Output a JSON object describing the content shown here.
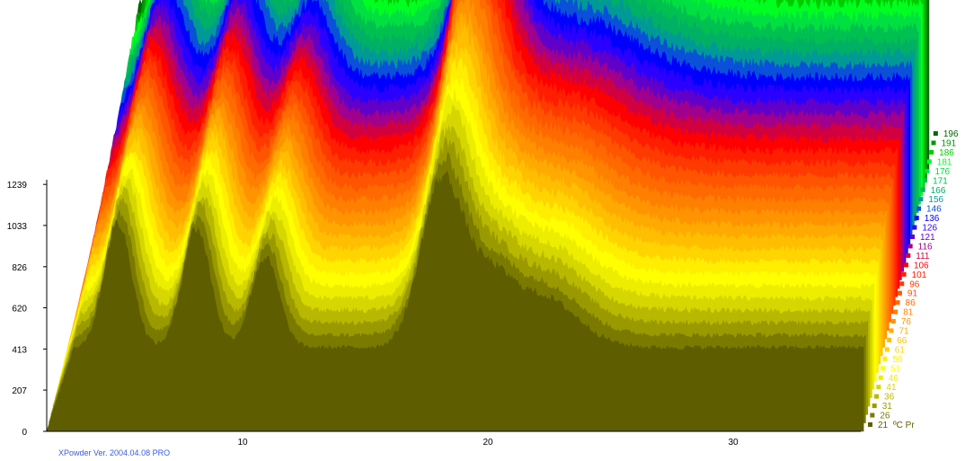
{
  "footer_text": "XPowder Ver. 2004.04.08 PRO",
  "legend_unit": "ºC",
  "legend_suffix": "Pr",
  "chart_data": {
    "type": "area",
    "style": "3d-stacked-waterfall",
    "xlabel": "",
    "ylabel": "",
    "x_ticks": [
      10,
      20,
      30
    ],
    "xlim": [
      2.3,
      35.6
    ],
    "y_ticks": [
      "0",
      "207",
      "413",
      "620",
      "826",
      "1033",
      "1239"
    ],
    "ylim": [
      0,
      1400
    ],
    "series_temperatures": [
      21,
      26,
      31,
      36,
      41,
      46,
      51,
      56,
      61,
      66,
      71,
      76,
      81,
      86,
      91,
      96,
      101,
      106,
      111,
      116,
      121,
      126,
      136,
      146,
      156,
      166,
      171,
      176,
      181,
      186,
      191,
      196
    ],
    "series_colors": [
      "#5e5e00",
      "#7a7a00",
      "#9a9a00",
      "#b8b800",
      "#d6d600",
      "#eded00",
      "#ffff00",
      "#ffee00",
      "#ffd400",
      "#ffbf00",
      "#ffaa00",
      "#ff9400",
      "#ff7f00",
      "#ff6a00",
      "#ff5500",
      "#ff3a00",
      "#ff1e00",
      "#ff0000",
      "#d1003f",
      "#a0008c",
      "#6000c8",
      "#2a00ff",
      "#0000ff",
      "#0a50d8",
      "#009a96",
      "#00b064",
      "#00c050",
      "#00e040",
      "#00ff20",
      "#00cc00",
      "#009900",
      "#006600"
    ],
    "legend_position": "right"
  }
}
